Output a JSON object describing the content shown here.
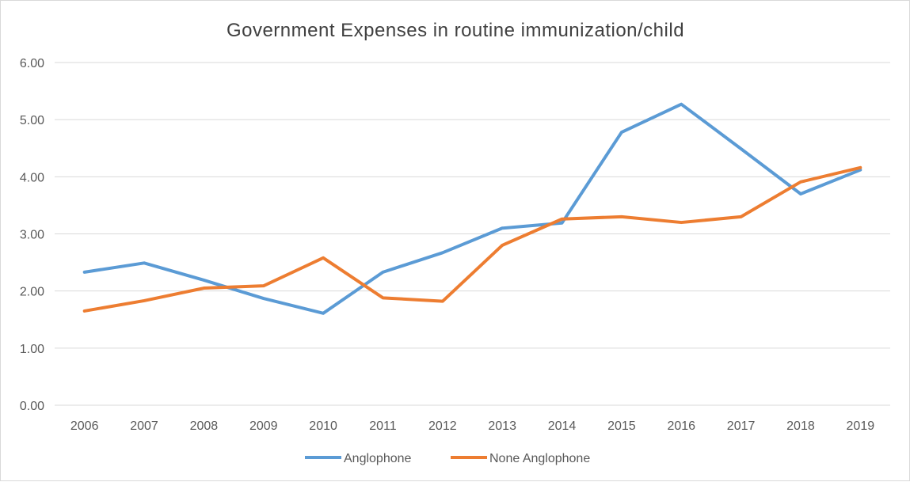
{
  "chart_data": {
    "type": "line",
    "title": "Government Expenses in  routine  immunization/child",
    "xlabel": "",
    "ylabel": "",
    "categories": [
      "2006",
      "2007",
      "2008",
      "2009",
      "2010",
      "2011",
      "2012",
      "2013",
      "2014",
      "2015",
      "2016",
      "2017",
      "2018",
      "2019"
    ],
    "ylim": [
      0,
      6
    ],
    "yticks": [
      "0.00",
      "1.00",
      "2.00",
      "3.00",
      "4.00",
      "5.00",
      "6.00"
    ],
    "grid": true,
    "legend_position": "bottom",
    "series": [
      {
        "name": "Anglophone",
        "color": "#5B9BD5",
        "values": [
          2.33,
          2.49,
          2.19,
          1.87,
          1.61,
          2.33,
          2.67,
          3.1,
          3.19,
          4.78,
          5.27,
          4.49,
          3.7,
          4.12
        ]
      },
      {
        "name": "None Anglophone",
        "color": "#ED7D31",
        "values": [
          1.65,
          1.83,
          2.05,
          2.09,
          2.58,
          1.88,
          1.82,
          2.8,
          3.26,
          3.3,
          3.2,
          3.3,
          3.91,
          4.16
        ]
      }
    ]
  }
}
